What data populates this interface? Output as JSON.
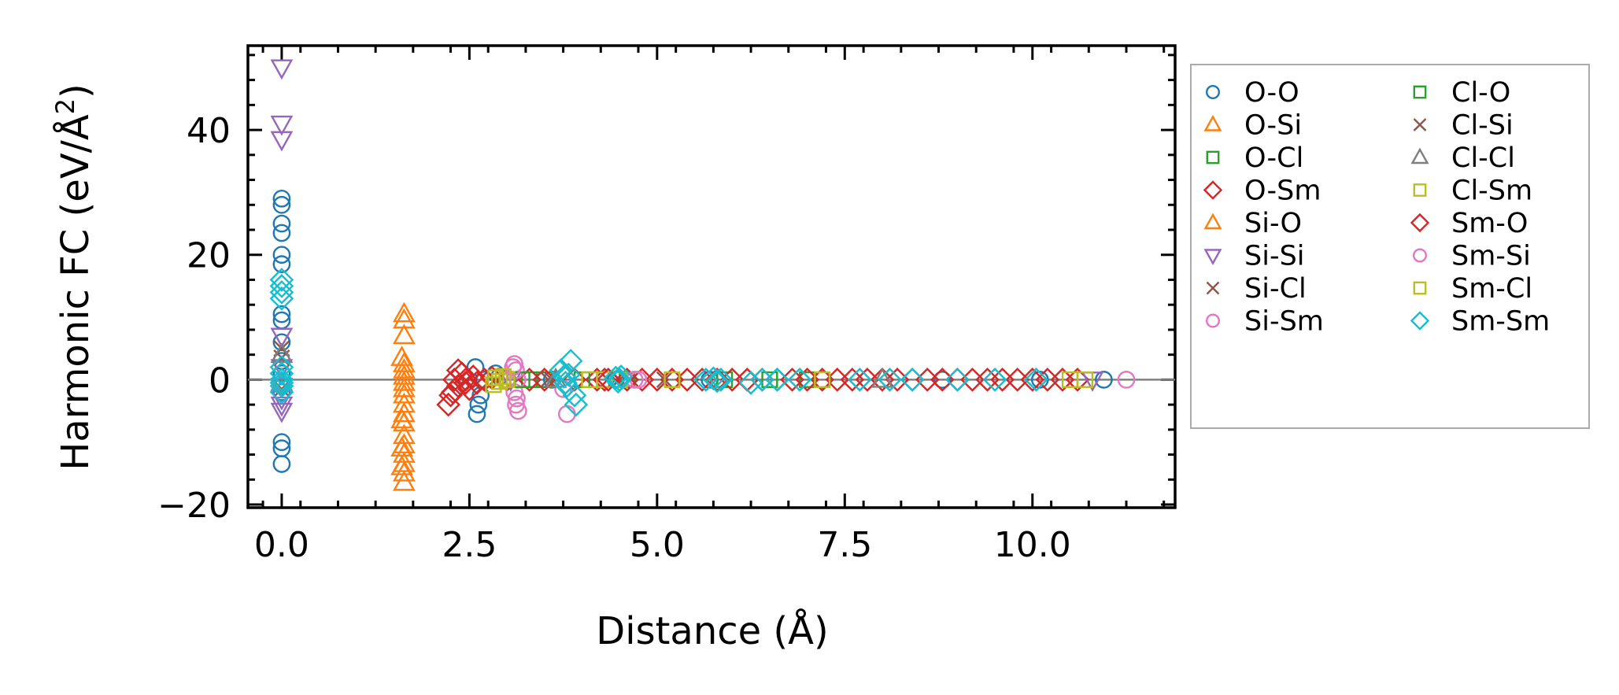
{
  "chart_data": {
    "type": "scatter",
    "xlabel": "Distance (Å)",
    "ylabel_main": "Harmonic FC (eV/Å",
    "ylabel_sup": "2",
    "ylabel_end": ")",
    "xlim": [
      -0.45,
      11.9
    ],
    "ylim": [
      -20.5,
      53.5
    ],
    "xticks": [
      0.0,
      2.5,
      5.0,
      7.5,
      10.0
    ],
    "xtick_labels": [
      "0.0",
      "2.5",
      "5.0",
      "7.5",
      "10.0"
    ],
    "yticks": [
      -20,
      0,
      20,
      40
    ],
    "ytick_labels": [
      "−20",
      "0",
      "20",
      "40"
    ],
    "zero_line": 0,
    "legend_position": "outside right",
    "series": [
      {
        "name": "O-O",
        "marker": "circle",
        "color": "#1f77b4",
        "points": [
          [
            0,
            29
          ],
          [
            0,
            28
          ],
          [
            0,
            25
          ],
          [
            0,
            23.5
          ],
          [
            0,
            20
          ],
          [
            0,
            18.5
          ],
          [
            0,
            10.5
          ],
          [
            0,
            9.5
          ],
          [
            0,
            6
          ],
          [
            0,
            3
          ],
          [
            0,
            1
          ],
          [
            0,
            -1
          ],
          [
            0,
            -2
          ],
          [
            0,
            -10
          ],
          [
            0,
            -11
          ],
          [
            0,
            -13.5
          ],
          [
            2.58,
            2
          ],
          [
            2.6,
            -5.5
          ],
          [
            2.62,
            -4
          ],
          [
            2.65,
            -2.5
          ],
          [
            2.7,
            0
          ],
          [
            2.85,
            1
          ],
          [
            2.9,
            0.5
          ],
          [
            3.6,
            0
          ],
          [
            4.45,
            0
          ],
          [
            5.7,
            0
          ],
          [
            7.2,
            0
          ],
          [
            8.8,
            0
          ],
          [
            10.1,
            0
          ],
          [
            10.95,
            0
          ]
        ]
      },
      {
        "name": "O-Si",
        "marker": "triangle-up",
        "color": "#ff7f0e",
        "points": [
          [
            1.63,
            10.5
          ],
          [
            1.63,
            9.5
          ],
          [
            1.63,
            7
          ],
          [
            1.63,
            2.5
          ],
          [
            1.63,
            1.5
          ],
          [
            1.63,
            0.5
          ],
          [
            1.63,
            -0.5
          ],
          [
            1.63,
            -1.5
          ],
          [
            1.63,
            -2.5
          ],
          [
            1.63,
            -4
          ],
          [
            1.63,
            -5.5
          ],
          [
            1.63,
            -7
          ],
          [
            1.63,
            -9
          ],
          [
            1.63,
            -10.5
          ],
          [
            1.63,
            -12
          ],
          [
            1.63,
            -13.5
          ],
          [
            1.63,
            -15
          ],
          [
            1.63,
            -16.5
          ]
        ]
      },
      {
        "name": "O-Cl",
        "marker": "square",
        "color": "#2ca02c",
        "points": [
          [
            3.3,
            0
          ],
          [
            3.5,
            0
          ],
          [
            4.6,
            0
          ],
          [
            5.9,
            0
          ],
          [
            7.0,
            0
          ]
        ]
      },
      {
        "name": "O-Sm",
        "marker": "diamond",
        "color": "#d62728",
        "points": [
          [
            2.22,
            -4
          ],
          [
            2.25,
            -2.5
          ],
          [
            2.3,
            0
          ],
          [
            2.35,
            -1
          ],
          [
            2.4,
            1
          ],
          [
            2.45,
            0
          ],
          [
            2.5,
            -1.5
          ],
          [
            2.55,
            0.5
          ],
          [
            2.6,
            -0.5
          ],
          [
            2.7,
            0
          ],
          [
            2.8,
            0.3
          ],
          [
            3.0,
            0
          ],
          [
            3.3,
            0
          ],
          [
            3.5,
            0
          ],
          [
            3.9,
            0
          ],
          [
            4.2,
            0
          ],
          [
            4.3,
            0
          ],
          [
            4.6,
            0
          ],
          [
            4.8,
            0
          ],
          [
            5.0,
            0
          ],
          [
            5.2,
            0
          ],
          [
            5.4,
            0
          ],
          [
            5.6,
            0
          ],
          [
            5.8,
            0
          ],
          [
            6.0,
            0
          ],
          [
            6.2,
            0
          ],
          [
            6.4,
            0
          ],
          [
            6.6,
            0
          ],
          [
            6.8,
            0
          ],
          [
            7.0,
            0
          ],
          [
            7.2,
            0
          ],
          [
            7.4,
            0
          ],
          [
            7.6,
            0
          ],
          [
            7.8,
            0
          ],
          [
            8.0,
            0
          ],
          [
            8.2,
            0
          ],
          [
            8.4,
            0
          ],
          [
            8.6,
            0
          ],
          [
            8.8,
            0
          ],
          [
            9.0,
            0
          ],
          [
            9.2,
            0
          ],
          [
            9.4,
            0
          ],
          [
            9.6,
            0
          ],
          [
            9.8,
            0
          ],
          [
            10.0,
            0
          ],
          [
            10.2,
            0
          ],
          [
            10.4,
            0
          ],
          [
            10.6,
            0
          ]
        ]
      },
      {
        "name": "Si-O",
        "marker": "triangle-up",
        "color": "#ff7f0e",
        "points": [
          [
            1.6,
            3.5
          ],
          [
            1.6,
            -6.5
          ],
          [
            1.6,
            -11
          ],
          [
            1.6,
            -14
          ]
        ]
      },
      {
        "name": "Si-Si",
        "marker": "triangle-down",
        "color": "#9467bd",
        "points": [
          [
            0,
            50
          ],
          [
            0,
            41
          ],
          [
            0,
            38.5
          ],
          [
            0,
            7
          ],
          [
            0,
            2
          ],
          [
            0,
            -1
          ],
          [
            0,
            -3
          ],
          [
            0,
            -4
          ],
          [
            0,
            -5
          ],
          [
            3.05,
            0
          ],
          [
            10.8,
            0
          ]
        ]
      },
      {
        "name": "Si-Cl",
        "marker": "x",
        "color": "#8c564b",
        "points": [
          [
            0,
            5
          ],
          [
            0,
            3.5
          ],
          [
            0,
            -1.5
          ],
          [
            3.55,
            0
          ],
          [
            4.5,
            0
          ]
        ]
      },
      {
        "name": "Si-Sm",
        "marker": "circle",
        "color": "#e377c2",
        "points": [
          [
            3.1,
            2.5
          ],
          [
            3.12,
            1.5
          ],
          [
            3.14,
            0
          ],
          [
            3.1,
            -2
          ],
          [
            3.12,
            -4
          ],
          [
            3.15,
            -5
          ],
          [
            3.75,
            -1.5
          ],
          [
            3.8,
            -5.5
          ],
          [
            4.75,
            0
          ],
          [
            11.25,
            0
          ]
        ]
      },
      {
        "name": "Cl-O",
        "marker": "square",
        "color": "#2ca02c",
        "points": [
          [
            3.2,
            0
          ],
          [
            4.0,
            0
          ],
          [
            6.5,
            0
          ]
        ]
      },
      {
        "name": "Cl-Si",
        "marker": "x",
        "color": "#8c564b",
        "points": [
          [
            3.6,
            0
          ],
          [
            5.1,
            0
          ]
        ]
      },
      {
        "name": "Cl-Cl",
        "marker": "triangle-up",
        "color": "#7f7f7f",
        "points": [
          [
            0,
            4
          ],
          [
            0,
            -0.5
          ],
          [
            3.65,
            0
          ],
          [
            8.0,
            0
          ]
        ]
      },
      {
        "name": "Cl-Sm",
        "marker": "square",
        "color": "#bcbd22",
        "points": [
          [
            2.82,
            -0.8
          ],
          [
            2.85,
            0.3
          ],
          [
            2.9,
            -0.3
          ],
          [
            3.0,
            0
          ],
          [
            4.3,
            0
          ],
          [
            4.5,
            0
          ],
          [
            7.2,
            0
          ],
          [
            10.5,
            0
          ],
          [
            10.7,
            0
          ]
        ]
      },
      {
        "name": "Sm-O",
        "marker": "diamond",
        "color": "#d62728",
        "points": [
          [
            2.28,
            -2
          ],
          [
            2.35,
            1.5
          ],
          [
            2.45,
            -0.5
          ],
          [
            4.35,
            0
          ]
        ]
      },
      {
        "name": "Sm-Si",
        "marker": "circle",
        "color": "#e377c2",
        "points": [
          [
            3.08,
            2
          ],
          [
            3.13,
            -3
          ],
          [
            4.7,
            0
          ]
        ]
      },
      {
        "name": "Sm-Cl",
        "marker": "square",
        "color": "#bcbd22",
        "points": [
          [
            2.95,
            0.5
          ],
          [
            4.1,
            0
          ],
          [
            5.2,
            0
          ]
        ]
      },
      {
        "name": "Sm-Sm",
        "marker": "diamond",
        "color": "#17becf",
        "points": [
          [
            0,
            16
          ],
          [
            0,
            15
          ],
          [
            0,
            14
          ],
          [
            0,
            13
          ],
          [
            0,
            2
          ],
          [
            0,
            1
          ],
          [
            0,
            0
          ],
          [
            0,
            -0.5
          ],
          [
            0,
            -1
          ],
          [
            0,
            -2
          ],
          [
            3.72,
            1.5
          ],
          [
            3.76,
            0.5
          ],
          [
            3.78,
            -0.5
          ],
          [
            3.8,
            -1
          ],
          [
            3.82,
            0.8
          ],
          [
            3.85,
            3
          ],
          [
            3.9,
            -2.5
          ],
          [
            3.92,
            -4
          ],
          [
            4.45,
            0.3
          ],
          [
            4.48,
            -0.3
          ],
          [
            4.5,
            0
          ],
          [
            4.52,
            0.5
          ],
          [
            5.65,
            0
          ],
          [
            5.75,
            0.2
          ],
          [
            5.8,
            -0.2
          ],
          [
            5.85,
            0
          ],
          [
            6.25,
            -0.5
          ],
          [
            6.4,
            0
          ],
          [
            6.6,
            0
          ],
          [
            6.9,
            0
          ],
          [
            7.7,
            0
          ],
          [
            8.1,
            0
          ],
          [
            8.4,
            0
          ],
          [
            9.0,
            0
          ],
          [
            9.5,
            0
          ],
          [
            10.05,
            0
          ]
        ]
      }
    ]
  }
}
